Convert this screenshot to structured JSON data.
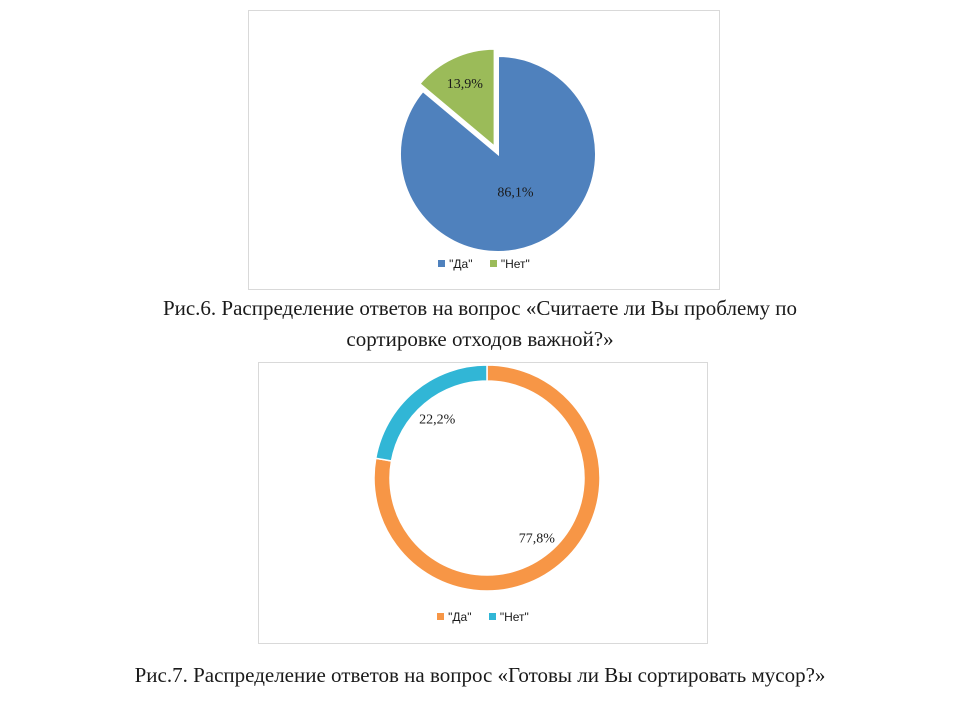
{
  "figures": [
    {
      "caption_lines": [
        "Рис.6. Распределение ответов на вопрос «Считаете ли Вы проблему по",
        "сортировке отходов важной?»"
      ]
    },
    {
      "caption_lines": [
        "Рис.7. Распределение ответов на вопрос «Готовы ли Вы сортировать мусор?»"
      ]
    }
  ],
  "chart_data": [
    {
      "type": "pie",
      "categories": [
        "\"Да\"",
        "\"Нет\""
      ],
      "values": [
        86.1,
        13.9
      ],
      "data_labels": [
        "86,1%",
        "13,9%"
      ],
      "colors": [
        "#4f81bd",
        "#9bbb59"
      ],
      "legend": "bottom",
      "exploded": "\"Нет\""
    },
    {
      "type": "pie",
      "subtype": "doughnut",
      "categories": [
        "\"Да\"",
        "\"Нет\""
      ],
      "values": [
        77.8,
        22.2
      ],
      "data_labels": [
        "77,8%",
        "22,2%"
      ],
      "colors": [
        "#f79646",
        "#31b6d6"
      ],
      "legend": "bottom"
    }
  ]
}
